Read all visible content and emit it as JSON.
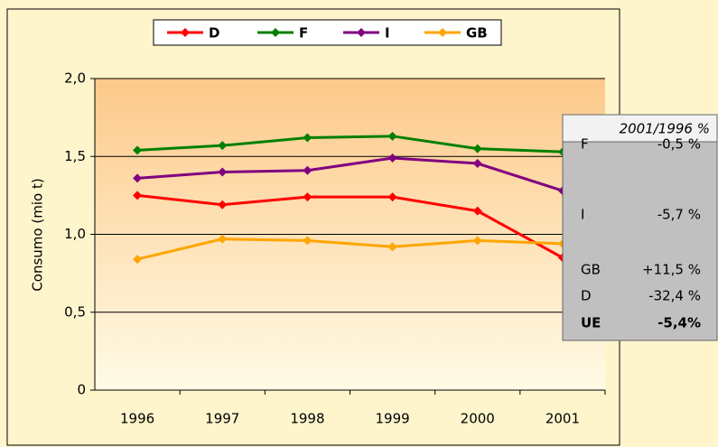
{
  "chart_data": {
    "type": "line",
    "y_label": "Consumo (mio t)",
    "categories": [
      "1996",
      "1997",
      "1998",
      "1999",
      "2000",
      "2001"
    ],
    "series": [
      {
        "name": "D",
        "color": "#ff0000",
        "values": [
          1.25,
          1.19,
          1.24,
          1.24,
          1.15,
          0.85
        ]
      },
      {
        "name": "F",
        "color": "#008000",
        "values": [
          1.54,
          1.57,
          1.62,
          1.63,
          1.55,
          1.53
        ]
      },
      {
        "name": "I",
        "color": "#800080",
        "values": [
          1.36,
          1.4,
          1.41,
          1.49,
          1.455,
          1.28
        ]
      },
      {
        "name": "GB",
        "color": "#ffa500",
        "values": [
          0.84,
          0.97,
          0.96,
          0.92,
          0.96,
          0.94
        ]
      }
    ],
    "ylim": [
      0,
      2
    ],
    "yticks": [
      0,
      {
        "value": 0.5,
        "label": "0,5"
      },
      {
        "value": 1,
        "label": "1,0"
      },
      {
        "value": 1.5,
        "label": "1,5"
      },
      {
        "value": 2,
        "label": "2,0"
      }
    ],
    "grid": true,
    "legend": "top",
    "annotation": {
      "title": "2001/1996 %",
      "rows": [
        [
          "F",
          "-0,5 %"
        ],
        [
          "I",
          "-5,7 %"
        ],
        [
          "GB",
          "+11,5 %"
        ],
        [
          "D",
          "-32,4 %"
        ],
        [
          "UE",
          "-5,4%"
        ]
      ]
    }
  }
}
